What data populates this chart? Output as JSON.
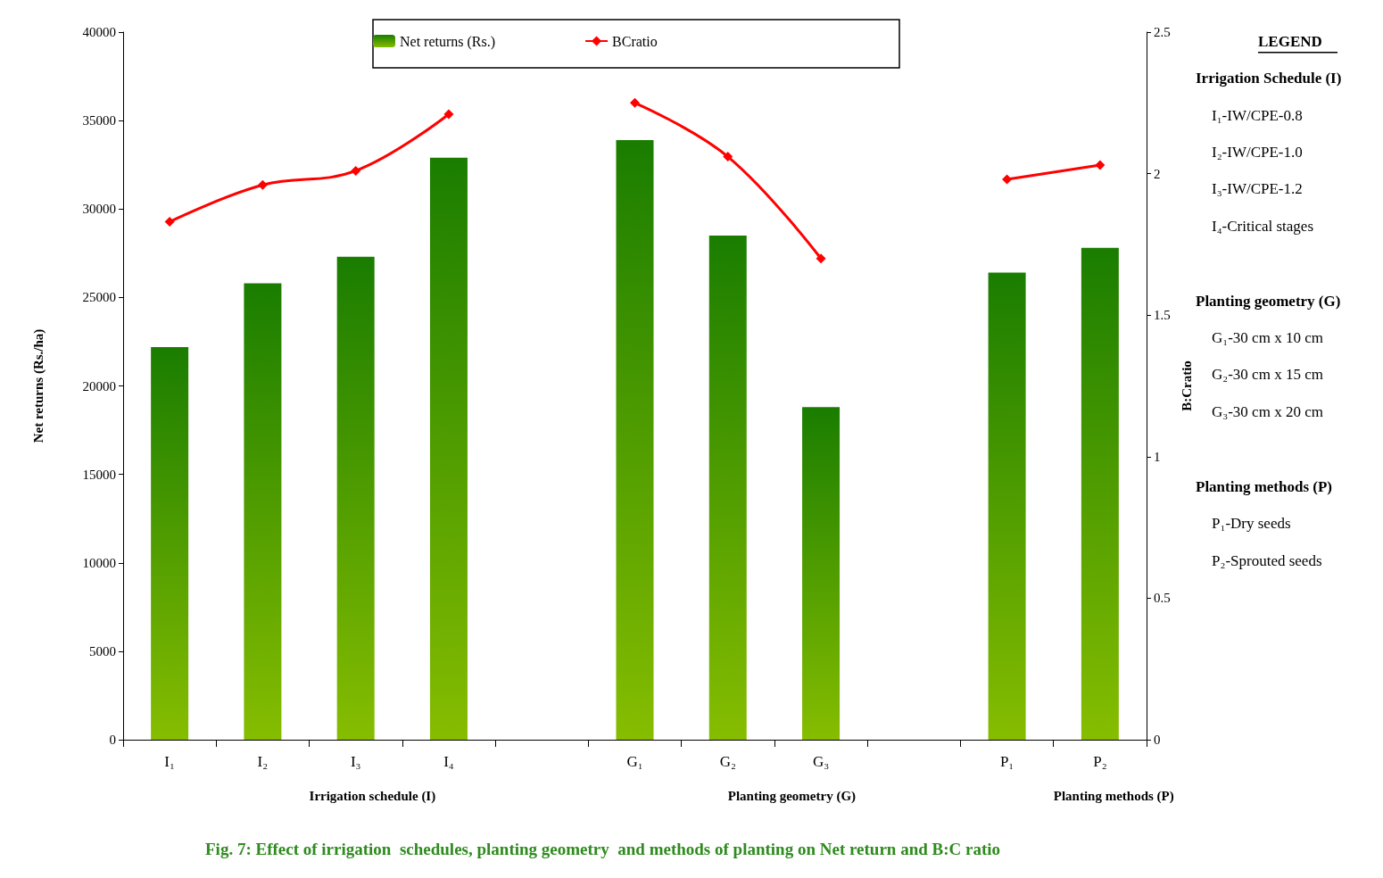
{
  "chart_data": {
    "type": "bar",
    "title": "Fig. 7: Effect of irrigation  schedules, planting geometry  and methods of planting on Net return and B:C ratio",
    "xlabel": null,
    "ylabel": "Net returns (Rs./ha)",
    "y2label": "B:Cratio",
    "categories": [
      "I₁",
      "I₂",
      "I₃",
      "I₄",
      null,
      "G₁",
      "G₂",
      "G₃",
      null,
      "P₁",
      "P₂"
    ],
    "series": [
      {
        "name": "Net returns (Rs.)",
        "color": "#1a7d00",
        "values": [
          22200,
          25800,
          27300,
          32900,
          null,
          33900,
          28500,
          18800,
          null,
          26400,
          27800
        ]
      },
      {
        "name": "BCratio",
        "type": "line",
        "axis": "y2",
        "color": "#ff0000",
        "marker": "diamond",
        "values": [
          1.83,
          1.96,
          2.01,
          2.21,
          null,
          2.25,
          2.06,
          1.7,
          null,
          1.98,
          2.03
        ]
      }
    ],
    "ylim": [
      0,
      40000
    ],
    "yticks": [
      0,
      5000,
      10000,
      15000,
      20000,
      25000,
      30000,
      35000,
      40000
    ],
    "y2lim": [
      0,
      2.5
    ],
    "y2ticks": [
      0,
      0.5,
      1,
      1.5,
      2,
      2.5
    ],
    "grid": false,
    "legend": "top",
    "annotations": [
      "Irrigation schedule (I)",
      "Planting geometry (G)",
      "Planting methods (P)",
      "LEGEND",
      "Irrigation Schedule (I)",
      "I₁-IW/CPE-0.8",
      "I₂-IW/CPE-1.0",
      "I₃-IW/CPE-1.2",
      "I₄-Critical stages",
      "Planting geometry (G)",
      "G₁-30 cm x 10 cm",
      "G₂-30 cm x 15 cm",
      "G₃-30 cm x 20 cm",
      "Planting methods (P)",
      "P₁-Dry seeds",
      "P₂-Sprouted seeds"
    ]
  }
}
